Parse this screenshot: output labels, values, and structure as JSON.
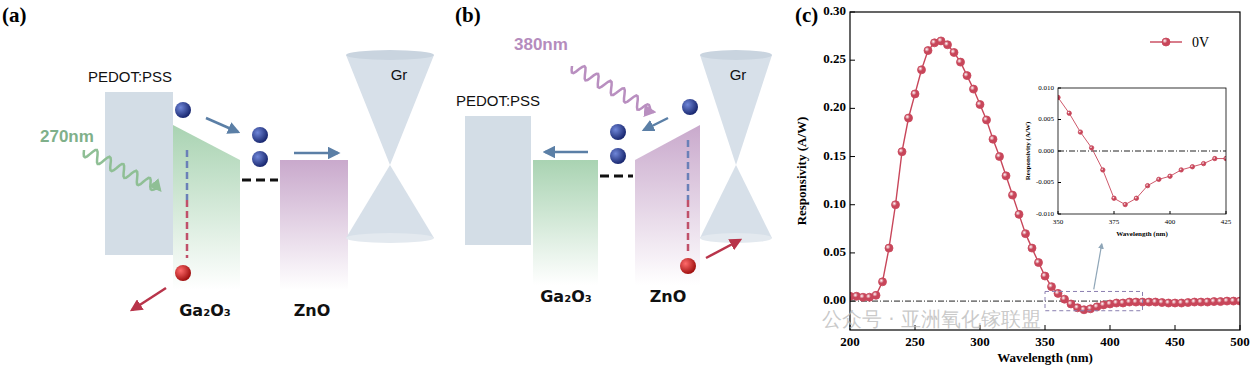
{
  "diagrams": {
    "a": {
      "label": "(a)",
      "layers": [
        "PEDOT:PSS",
        "Ga₂O₃",
        "ZnO",
        "Gr"
      ],
      "light": "270nm"
    },
    "b": {
      "label": "(b)",
      "layers": [
        "PEDOT:PSS",
        "Ga₂O₃",
        "ZnO",
        "Gr"
      ],
      "light": "380nm"
    }
  },
  "panel_c_label": "(c)",
  "watermark": "公众号 · 亚洲氧化镓联盟",
  "chart_data": [
    {
      "type": "line",
      "marker": "circle",
      "x_label": "Wavelength (nm)",
      "y_label": "Responsivity (A/W)",
      "legend": "upper right",
      "x": [
        200,
        205,
        210,
        215,
        220,
        225,
        230,
        235,
        240,
        245,
        250,
        255,
        260,
        265,
        270,
        275,
        280,
        285,
        290,
        295,
        300,
        305,
        310,
        315,
        320,
        325,
        330,
        335,
        340,
        345,
        350,
        355,
        360,
        365,
        370,
        375,
        380,
        385,
        390,
        395,
        400,
        405,
        410,
        415,
        420,
        425,
        430,
        435,
        440,
        445,
        450,
        455,
        460,
        465,
        470,
        475,
        480,
        485,
        490,
        495,
        500
      ],
      "series": [
        {
          "name": "0V",
          "color": "#c8465a",
          "values": [
            0.005,
            0.005,
            0.004,
            0.004,
            0.006,
            0.02,
            0.055,
            0.1,
            0.155,
            0.19,
            0.215,
            0.24,
            0.26,
            0.268,
            0.27,
            0.266,
            0.258,
            0.248,
            0.234,
            0.22,
            0.204,
            0.188,
            0.168,
            0.15,
            0.13,
            0.11,
            0.09,
            0.07,
            0.055,
            0.04,
            0.026,
            0.015,
            0.008,
            0.002,
            -0.003,
            -0.007,
            -0.009,
            -0.008,
            -0.006,
            -0.004,
            -0.003,
            -0.002,
            -0.002,
            -0.001,
            -0.001,
            -0.001,
            -0.001,
            -0.001,
            -0.0015,
            -0.002,
            -0.002,
            -0.002,
            -0.0015,
            -0.001,
            -0.001,
            -0.001,
            -0.0005,
            -0.0005,
            0,
            0,
            0
          ]
        }
      ],
      "xlim": [
        200,
        500
      ],
      "ylim": [
        -0.03,
        0.3
      ],
      "xticks": [
        200,
        250,
        300,
        350,
        400,
        450,
        500
      ],
      "yticks": [
        {
          "value": 0,
          "label": "0.00"
        },
        {
          "value": 0.05,
          "label": "0.05"
        },
        {
          "value": 0.1,
          "label": "0.10"
        },
        {
          "value": 0.15,
          "label": "0.15"
        },
        {
          "value": 0.2,
          "label": "0.20"
        },
        {
          "value": 0.25,
          "label": "0.25"
        },
        {
          "value": 0.3,
          "label": "0.30"
        }
      ]
    },
    {
      "type": "line",
      "marker": "circle",
      "x_label": "Wavelength (nm)",
      "y_label": "Responsivity (A/W)",
      "x": [
        350,
        355,
        360,
        365,
        370,
        375,
        380,
        385,
        390,
        395,
        400,
        405,
        410,
        415,
        420,
        425
      ],
      "series": [
        {
          "color": "#c8465a",
          "values": [
            0.0085,
            0.006,
            0.003,
            0.0005,
            -0.003,
            -0.0075,
            -0.0085,
            -0.0075,
            -0.0055,
            -0.0045,
            -0.004,
            -0.003,
            -0.0025,
            -0.002,
            -0.0012,
            -0.0012
          ]
        }
      ],
      "xlim": [
        350,
        425
      ],
      "ylim": [
        -0.01,
        0.01
      ],
      "xticks": [
        350,
        375,
        400,
        425
      ],
      "yticks": [
        {
          "value": -0.01,
          "label": "-0.010"
        },
        {
          "value": -0.005,
          "label": "-0.005"
        },
        {
          "value": 0,
          "label": "0.000"
        },
        {
          "value": 0.005,
          "label": "0.005"
        },
        {
          "value": 0.01,
          "label": "0.010"
        }
      ]
    }
  ]
}
